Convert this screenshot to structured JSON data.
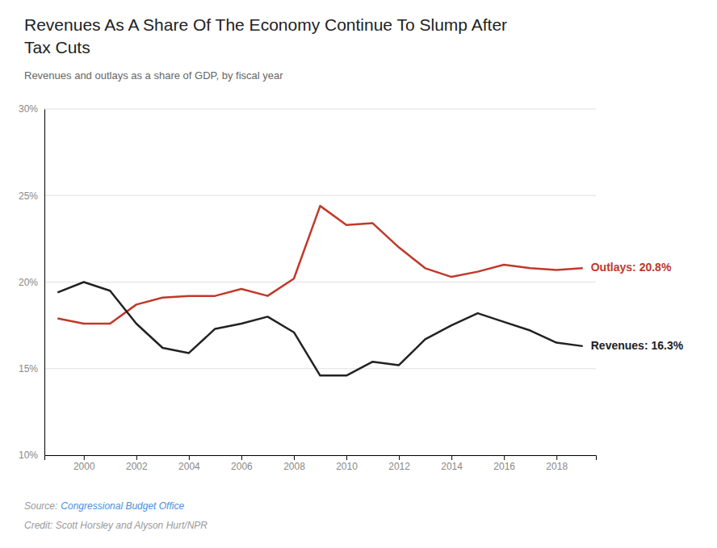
{
  "chart_data": {
    "type": "line",
    "title": [
      "Revenues As A Share Of The Economy Continue To Slump After",
      "Tax Cuts"
    ],
    "subtitle": "Revenues and outlays as a share of GDP, by fiscal year",
    "source_label": "Source:",
    "source": "Congressional Budget Office",
    "source_color": "#4a90d9",
    "credit": "Credit: Scott Horsley and Alyson Hurt/NPR",
    "x": [
      1999,
      2000,
      2001,
      2002,
      2003,
      2004,
      2005,
      2006,
      2007,
      2008,
      2009,
      2010,
      2011,
      2012,
      2013,
      2014,
      2015,
      2016,
      2017,
      2018,
      2019
    ],
    "series": [
      {
        "color": "#c0392b",
        "values": [
          17.9,
          17.6,
          17.6,
          18.7,
          19.1,
          19.2,
          19.2,
          19.6,
          19.2,
          20.2,
          24.4,
          23.3,
          23.4,
          22.0,
          20.8,
          20.3,
          20.6,
          21.0,
          20.8,
          20.7,
          20.8
        ]
      },
      {
        "color": "#222222",
        "values": [
          19.4,
          20.0,
          19.5,
          17.6,
          16.2,
          15.9,
          17.3,
          17.6,
          18.0,
          17.1,
          14.6,
          14.6,
          15.4,
          15.2,
          16.7,
          17.5,
          18.2,
          17.7,
          17.2,
          16.5,
          16.3
        ]
      }
    ],
    "annotations": [
      {
        "text": "Outlays: 20.8%",
        "x": 2019,
        "y": 20.8,
        "color": "#c0392b"
      },
      {
        "text": "Revenues: 16.3%",
        "x": 2019,
        "y": 16.3,
        "color": "#222222"
      }
    ],
    "xlim": [
      1998.5,
      2019.5
    ],
    "xticks": [
      2000,
      2002,
      2004,
      2006,
      2008,
      2010,
      2012,
      2014,
      2016,
      2018
    ],
    "ylim": [
      10,
      30
    ],
    "yticks": [
      {
        "value": 10,
        "label": "10%"
      },
      {
        "value": 15,
        "label": "15%"
      },
      {
        "value": 20,
        "label": "20%"
      },
      {
        "value": 25,
        "label": "25%"
      },
      {
        "value": 30,
        "label": "30%"
      }
    ],
    "grid": true
  }
}
